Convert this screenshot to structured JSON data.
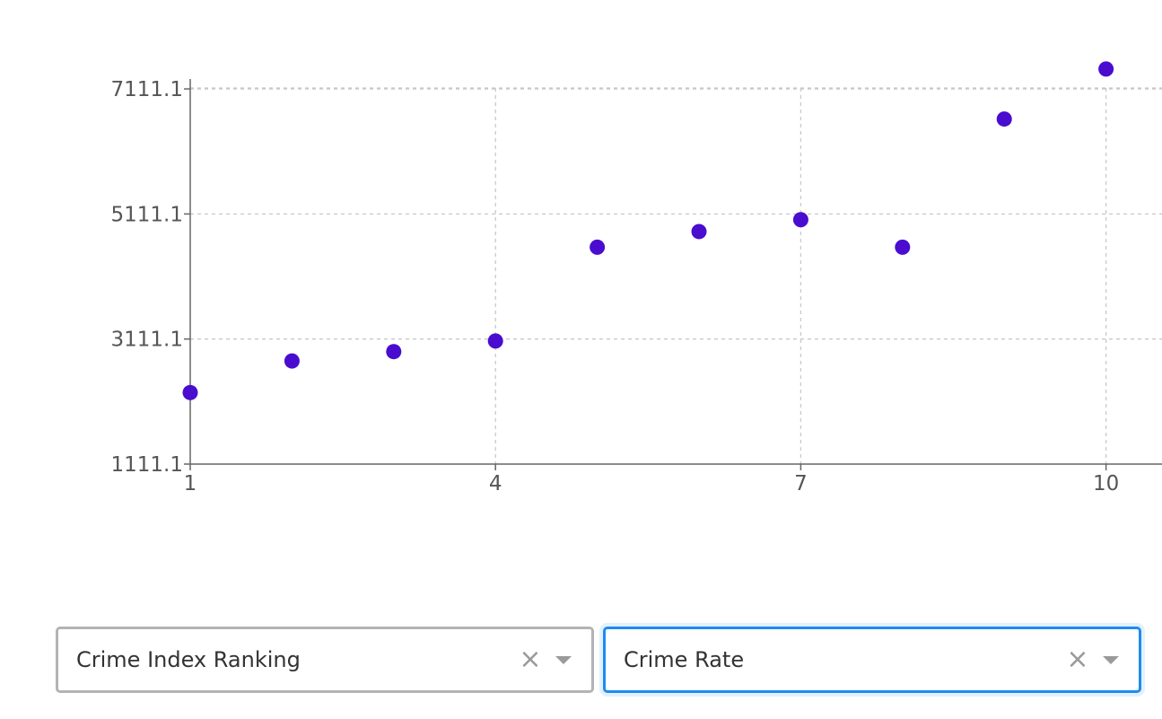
{
  "chart_data": {
    "type": "scatter",
    "x": [
      1,
      2,
      3,
      4,
      5,
      6,
      7,
      8,
      9,
      10
    ],
    "y": [
      2255,
      2760,
      2910,
      3080,
      4580,
      4830,
      5020,
      4580,
      6630,
      7430
    ],
    "xticks": [
      1,
      4,
      7,
      10
    ],
    "xtick_labels": [
      "1",
      "4",
      "7",
      "10"
    ],
    "yticks": [
      1111.1,
      3111.1,
      5111.1,
      7111.1
    ],
    "ytick_labels": [
      "1111.1",
      "3111.1",
      "5111.1",
      "7111.1"
    ],
    "xlim": [
      1,
      10.55
    ],
    "ylim": [
      1111.1,
      7270
    ],
    "grid": true,
    "point_color": "#4a0ccf"
  },
  "controls": {
    "x_select": {
      "value": "Crime Index Ranking",
      "clear_glyph": "×"
    },
    "y_select": {
      "value": "Crime Rate",
      "clear_glyph": "×"
    }
  }
}
